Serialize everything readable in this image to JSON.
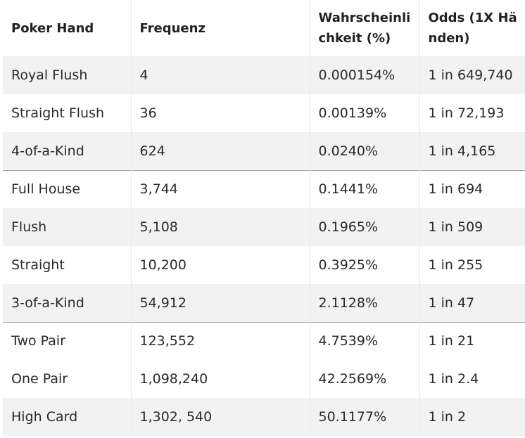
{
  "table": {
    "headers": [
      "Poker Hand",
      "Frequenz",
      "Wahrscheinlichkeit (%)",
      "Odds (1X Händen)"
    ],
    "rows": [
      {
        "hand": "Royal Flush",
        "frequency": "4",
        "probability": "0.000154%",
        "odds": "1 in 649,740"
      },
      {
        "hand": "Straight Flush",
        "frequency": "36",
        "probability": "0.00139%",
        "odds": "1 in 72,193"
      },
      {
        "hand": "4-of-a-Kind",
        "frequency": "624",
        "probability": "0.0240%",
        "odds": "1 in 4,165"
      },
      {
        "hand": "Full House",
        "frequency": "3,744",
        "probability": "0.1441%",
        "odds": "1 in 694"
      },
      {
        "hand": "Flush",
        "frequency": "5,108",
        "probability": "0.1965%",
        "odds": "1 in 509"
      },
      {
        "hand": "Straight",
        "frequency": "10,200",
        "probability": "0.3925%",
        "odds": "1 in 255"
      },
      {
        "hand": "3-of-a-Kind",
        "frequency": "54,912",
        "probability": "2.1128%",
        "odds": "1 in 47"
      },
      {
        "hand": "Two Pair",
        "frequency": "123,552",
        "probability": "4.7539%",
        "odds": "1 in 21"
      },
      {
        "hand": "One Pair",
        "frequency": "1,098,240",
        "probability": "42.2569%",
        "odds": "1 in 2.4"
      },
      {
        "hand": "High Card",
        "frequency": "1,302, 540",
        "probability": "50.1177%",
        "odds": "1 in 2"
      }
    ]
  },
  "colors": {
    "stripe": "#f2f2f2",
    "separator": "#a8a8a8",
    "text": "#222222"
  }
}
